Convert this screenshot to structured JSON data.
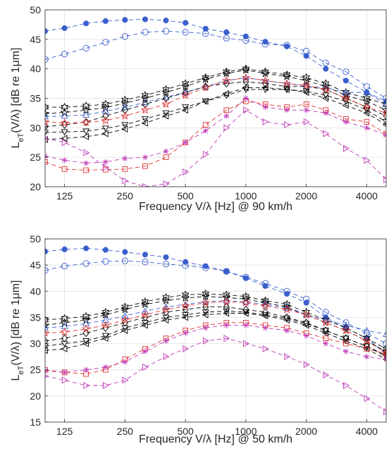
{
  "chart_data": [
    {
      "type": "line",
      "xlabel": "Frequency V/λ [Hz] @ 90 km/h",
      "ylabel": "L_eT(V/λ) [dB re 1μm]",
      "ylabel_main": "L",
      "ylabel_sub": "eT",
      "ylabel_mid": "(V/",
      "ylabel_lambda": "λ",
      "ylabel_tail": ") [dB re 1",
      "ylabel_mu": "μ",
      "ylabel_end": "m]",
      "xlabel_pre": "Frequency V/",
      "xlabel_lambda": "λ",
      "xlabel_post": " [Hz] @ 90 km/h",
      "xscale": "log",
      "xlim": [
        100,
        5000
      ],
      "ylim": [
        20,
        50
      ],
      "yticks": [
        "20",
        "25",
        "30",
        "35",
        "40",
        "45",
        "50"
      ],
      "xticks": [
        "125",
        "250",
        "500",
        "1000",
        "2000",
        "4000"
      ],
      "grid": true,
      "x": [
        100,
        125,
        160,
        200,
        250,
        315,
        400,
        500,
        630,
        800,
        1000,
        1250,
        1600,
        2000,
        2500,
        3150,
        4000,
        5000
      ],
      "series": [
        {
          "color": "#3a5fcd",
          "marker": "dot",
          "values": [
            46.4,
            46.9,
            47.7,
            48.1,
            48.3,
            48.4,
            48.2,
            47.8,
            46.8,
            46.2,
            45.5,
            44.6,
            43.8,
            42.2,
            40.0,
            38.0,
            36.0,
            34.5
          ]
        },
        {
          "color": "#3a5fcd",
          "marker": "circle",
          "values": [
            41.6,
            42.5,
            43.5,
            44.5,
            45.5,
            46.2,
            46.4,
            46.2,
            46.0,
            45.2,
            44.8,
            44.2,
            44.0,
            43.0,
            41.0,
            39.5,
            37.0,
            35.0
          ]
        },
        {
          "color": "#000000",
          "marker": "hexagram",
          "values": [
            33.5,
            33.5,
            33.7,
            34.0,
            34.7,
            35.5,
            36.5,
            37.5,
            38.5,
            39.5,
            40.0,
            39.5,
            39.0,
            38.5,
            37.5,
            36.0,
            35.0,
            34.0
          ]
        },
        {
          "color": "#000000",
          "marker": "star",
          "values": [
            32.4,
            32.6,
            33.0,
            33.4,
            34.2,
            35.0,
            36.0,
            37.0,
            38.2,
            39.2,
            39.8,
            39.2,
            38.7,
            38.0,
            37.0,
            35.5,
            34.5,
            33.0
          ]
        },
        {
          "color": "#3a5fcd",
          "marker": "triangle-up",
          "values": [
            31.9,
            32.0,
            32.2,
            32.8,
            33.5,
            34.3,
            35.2,
            36.0,
            37.0,
            38.0,
            38.5,
            38.0,
            37.5,
            37.0,
            36.8,
            36.0,
            36.0,
            34.0
          ]
        },
        {
          "color": "#000000",
          "marker": "diamond",
          "values": [
            30.2,
            30.5,
            31.0,
            32.0,
            33.0,
            34.0,
            35.0,
            36.0,
            37.0,
            37.5,
            37.8,
            37.5,
            37.0,
            37.0,
            36.5,
            35.0,
            33.5,
            32.0
          ]
        },
        {
          "color": "#000000",
          "marker": "triangle-down",
          "values": [
            29.2,
            29.3,
            29.4,
            29.9,
            30.5,
            31.5,
            32.5,
            33.5,
            34.5,
            35.5,
            36.5,
            36.5,
            36.5,
            36.2,
            35.5,
            34.5,
            33.0,
            31.0
          ]
        },
        {
          "color": "#000000",
          "marker": "triangle-left",
          "values": [
            28.0,
            28.2,
            28.5,
            29.0,
            29.8,
            30.8,
            32.0,
            33.0,
            34.5,
            35.8,
            36.8,
            36.8,
            36.5,
            36.0,
            35.0,
            33.8,
            32.5,
            30.5
          ]
        },
        {
          "color": "#e03030",
          "marker": "star",
          "values": [
            31.0,
            30.8,
            30.9,
            31.2,
            32.0,
            33.0,
            34.0,
            35.5,
            36.8,
            38.0,
            38.5,
            38.0,
            37.5,
            37.2,
            36.5,
            35.0,
            33.5,
            32.5
          ]
        },
        {
          "color": "#e03030",
          "marker": "square",
          "values": [
            24.2,
            23.0,
            22.8,
            22.9,
            23.0,
            23.5,
            25.0,
            27.5,
            30.5,
            33.0,
            34.5,
            34.0,
            33.5,
            34.0,
            33.0,
            31.5,
            31.0,
            29.0
          ]
        },
        {
          "color": "#c03bb8",
          "marker": "asterisk",
          "values": [
            25.2,
            24.5,
            24.0,
            24.2,
            24.8,
            25.0,
            26.0,
            27.5,
            29.5,
            32.0,
            35.0,
            33.5,
            33.0,
            33.0,
            32.5,
            31.0,
            30.0,
            28.8
          ]
        },
        {
          "color": "#c03bb8",
          "marker": "triangle-right",
          "values": [
            28.2,
            27.5,
            25.8,
            23.3,
            21.0,
            20.0,
            20.5,
            22.5,
            25.5,
            30.0,
            33.0,
            31.0,
            30.5,
            31.0,
            29.0,
            26.5,
            24.5,
            21.2
          ]
        }
      ]
    },
    {
      "type": "line",
      "xlabel": "Frequency V/λ [Hz] @ 50 km/h",
      "ylabel": "L_eT(V/λ) [dB re 1μm]",
      "ylabel_main": "L",
      "ylabel_sub": "eT",
      "ylabel_mid": "(V/",
      "ylabel_lambda": "λ",
      "ylabel_tail": ") [dB re 1",
      "ylabel_mu": "μ",
      "ylabel_end": "m]",
      "xlabel_pre": "Frequency V/",
      "xlabel_lambda": "λ",
      "xlabel_post": " [Hz] @ 50 km/h",
      "xscale": "log",
      "xlim": [
        100,
        5000
      ],
      "ylim": [
        15,
        50
      ],
      "yticks": [
        "15",
        "20",
        "25",
        "30",
        "35",
        "40",
        "45",
        "50"
      ],
      "xticks": [
        "125",
        "250",
        "500",
        "1000",
        "2000",
        "4000"
      ],
      "grid": true,
      "x": [
        100,
        125,
        160,
        200,
        250,
        315,
        400,
        500,
        630,
        800,
        1000,
        1250,
        1600,
        2000,
        2500,
        3150,
        4000,
        5000
      ],
      "series": [
        {
          "color": "#3a5fcd",
          "marker": "dot",
          "values": [
            47.6,
            48.0,
            48.2,
            47.9,
            47.5,
            47.0,
            46.5,
            45.6,
            44.8,
            43.8,
            42.5,
            41.0,
            39.5,
            37.8,
            35.0,
            33.0,
            31.0,
            28.0
          ]
        },
        {
          "color": "#3a5fcd",
          "marker": "circle",
          "values": [
            44.0,
            44.8,
            45.3,
            45.7,
            45.8,
            45.6,
            45.2,
            44.9,
            44.5,
            43.8,
            42.7,
            41.5,
            40.0,
            38.5,
            36.0,
            34.0,
            32.0,
            30.0
          ]
        },
        {
          "color": "#000000",
          "marker": "hexagram",
          "values": [
            34.5,
            34.8,
            35.2,
            36.0,
            37.0,
            38.0,
            38.8,
            39.3,
            39.5,
            39.3,
            39.0,
            38.2,
            37.5,
            36.0,
            34.5,
            33.0,
            31.0,
            29.0
          ]
        },
        {
          "color": "#000000",
          "marker": "star",
          "values": [
            33.5,
            34.0,
            34.5,
            35.5,
            36.5,
            37.5,
            38.2,
            38.7,
            39.0,
            38.8,
            38.5,
            37.8,
            37.0,
            35.5,
            34.0,
            32.5,
            30.5,
            28.5
          ]
        },
        {
          "color": "#3a5fcd",
          "marker": "triangle-up",
          "values": [
            33.0,
            33.3,
            33.8,
            34.5,
            35.3,
            36.2,
            37.0,
            37.5,
            38.0,
            38.2,
            38.0,
            37.5,
            36.8,
            35.5,
            34.5,
            33.5,
            32.5,
            31.8
          ]
        },
        {
          "color": "#000000",
          "marker": "diamond",
          "values": [
            30.5,
            31.0,
            32.0,
            33.0,
            34.0,
            35.0,
            36.0,
            36.5,
            37.0,
            37.0,
            36.5,
            36.0,
            35.0,
            34.0,
            32.5,
            31.0,
            29.5,
            27.8
          ]
        },
        {
          "color": "#000000",
          "marker": "triangle-down",
          "values": [
            29.5,
            30.0,
            30.5,
            31.5,
            33.0,
            34.0,
            35.0,
            35.5,
            36.0,
            36.2,
            36.0,
            35.5,
            34.8,
            33.8,
            32.5,
            31.0,
            29.5,
            27.5
          ]
        },
        {
          "color": "#000000",
          "marker": "triangle-left",
          "values": [
            28.7,
            29.0,
            30.0,
            31.0,
            32.5,
            33.5,
            34.5,
            35.0,
            35.5,
            35.8,
            35.8,
            35.3,
            34.5,
            33.5,
            32.0,
            30.5,
            29.0,
            27.0
          ]
        },
        {
          "color": "#e03030",
          "marker": "star",
          "values": [
            32.0,
            32.2,
            32.8,
            33.5,
            34.5,
            35.5,
            36.5,
            37.2,
            37.8,
            38.0,
            37.8,
            37.2,
            36.5,
            35.5,
            34.0,
            32.5,
            30.5,
            28.2
          ]
        },
        {
          "color": "#e03030",
          "marker": "square",
          "values": [
            25.0,
            24.5,
            24.2,
            25.0,
            27.0,
            29.0,
            31.0,
            32.5,
            33.5,
            34.0,
            34.0,
            33.5,
            33.0,
            32.0,
            31.0,
            30.0,
            29.0,
            28.0
          ]
        },
        {
          "color": "#c03bb8",
          "marker": "asterisk",
          "values": [
            24.8,
            24.5,
            25.0,
            25.5,
            26.5,
            28.5,
            30.5,
            32.0,
            33.0,
            33.5,
            33.5,
            33.0,
            32.5,
            31.5,
            30.0,
            28.5,
            27.5,
            27.0
          ]
        },
        {
          "color": "#c03bb8",
          "marker": "triangle-right",
          "values": [
            23.8,
            23.0,
            22.0,
            22.0,
            23.0,
            25.5,
            27.5,
            29.0,
            30.5,
            31.0,
            30.0,
            29.0,
            27.5,
            26.0,
            24.0,
            22.0,
            19.5,
            17.0
          ]
        }
      ]
    }
  ]
}
